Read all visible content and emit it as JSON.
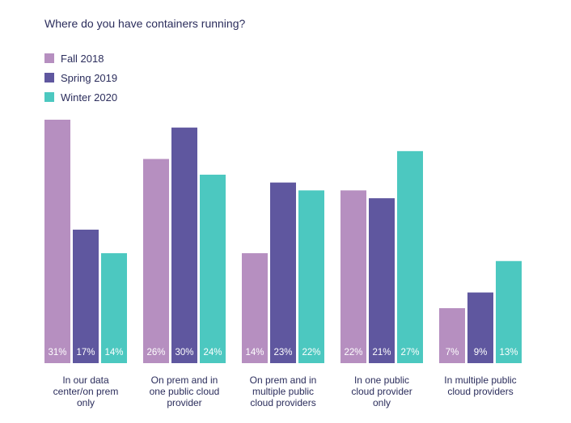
{
  "chart_data": {
    "type": "bar",
    "title": "Where do you have containers running?",
    "xlabel": "",
    "ylabel": "",
    "ylim": [
      0,
      31
    ],
    "grid": false,
    "legend_position": "top-left",
    "categories": [
      [
        "In our data",
        "center/on prem",
        "only"
      ],
      [
        "On prem and in",
        "one public cloud",
        "provider"
      ],
      [
        "On prem and in",
        "multiple public",
        "cloud providers"
      ],
      [
        "In one public",
        "cloud provider",
        "only"
      ],
      [
        "In multiple public",
        "cloud providers"
      ]
    ],
    "series": [
      {
        "name": "Fall 2018",
        "color": "#b68fc0",
        "values": [
          31,
          26,
          14,
          22,
          7
        ]
      },
      {
        "name": "Spring 2019",
        "color": "#5f579f",
        "values": [
          17,
          30,
          23,
          21,
          9
        ]
      },
      {
        "name": "Winter 2020",
        "color": "#4cc8c0",
        "values": [
          14,
          24,
          22,
          27,
          13
        ]
      }
    ],
    "value_suffix": "%"
  }
}
